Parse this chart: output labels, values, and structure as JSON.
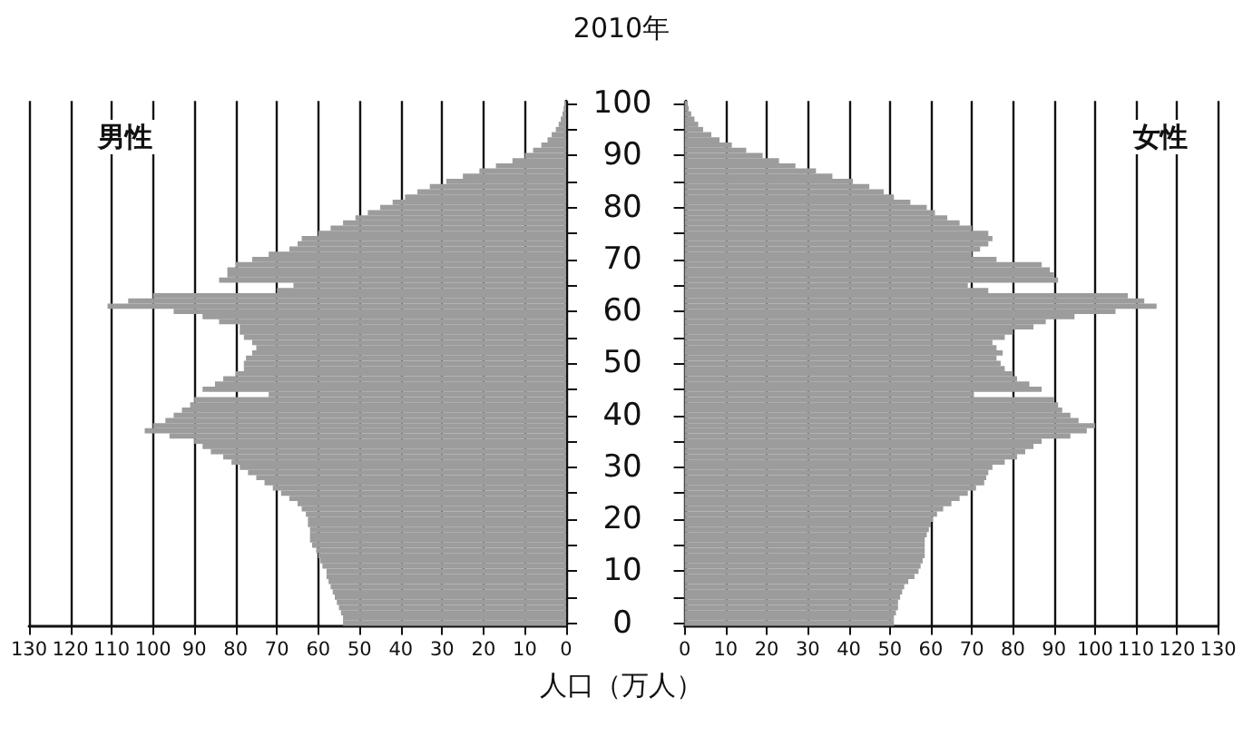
{
  "chart_data": [
    {
      "type": "bar",
      "orientation": "horizontal",
      "title": "2010年",
      "xlabel": "人口（万人）",
      "categories": [
        "100",
        null,
        null,
        null,
        null,
        null,
        null,
        null,
        null,
        null,
        "90",
        null,
        null,
        null,
        null,
        null,
        null,
        null,
        null,
        null,
        "80",
        null,
        null,
        null,
        null,
        null,
        null,
        null,
        null,
        null,
        "70",
        null,
        null,
        null,
        null,
        null,
        null,
        null,
        null,
        null,
        "60",
        null,
        null,
        null,
        null,
        null,
        null,
        null,
        null,
        null,
        "50",
        null,
        null,
        null,
        null,
        null,
        null,
        null,
        null,
        null,
        "40",
        null,
        null,
        null,
        null,
        null,
        null,
        null,
        null,
        null,
        "30",
        null,
        null,
        null,
        null,
        null,
        null,
        null,
        null,
        null,
        "20",
        null,
        null,
        null,
        null,
        null,
        null,
        null,
        null,
        null,
        "10",
        null,
        null,
        null,
        null,
        null,
        null,
        null,
        null,
        null,
        "0"
      ],
      "series": [
        {
          "name": "男性",
          "color": "#9c9c9c",
          "values": [
            0.4,
            0.6,
            0.9,
            1.3,
            1.8,
            2.5,
            3.5,
            4.5,
            6,
            8,
            10,
            13,
            17,
            21,
            25,
            29,
            33,
            36,
            39,
            42,
            45,
            48,
            51,
            54,
            57,
            60,
            64,
            65,
            67,
            72,
            76,
            80,
            82,
            82,
            84,
            66,
            70,
            100,
            106,
            111,
            95,
            88,
            84,
            79,
            79,
            78,
            76,
            75,
            76,
            77.5,
            78,
            78,
            80,
            83,
            85,
            88,
            72,
            90,
            91,
            93,
            95,
            97,
            100,
            102,
            96,
            90,
            88,
            86,
            83,
            81,
            79,
            77,
            75,
            73,
            71,
            69,
            67,
            65,
            64,
            63,
            62.5,
            62.5,
            62,
            62,
            62,
            61.5,
            60.5,
            60,
            59.5,
            59,
            58,
            58,
            57.5,
            57,
            56.5,
            56,
            55.5,
            55,
            54.5,
            54,
            54
          ]
        }
      ],
      "xlim": [
        130,
        0
      ],
      "xticks": [
        130,
        120,
        110,
        100,
        90,
        80,
        70,
        60,
        50,
        40,
        30,
        20,
        10,
        0
      ],
      "grid": "x",
      "legend": "top left"
    },
    {
      "type": "bar",
      "orientation": "horizontal",
      "categories": [
        "100",
        null,
        null,
        null,
        null,
        null,
        null,
        null,
        null,
        null,
        "90",
        null,
        null,
        null,
        null,
        null,
        null,
        null,
        null,
        null,
        "80",
        null,
        null,
        null,
        null,
        null,
        null,
        null,
        null,
        null,
        "70",
        null,
        null,
        null,
        null,
        null,
        null,
        null,
        null,
        null,
        "60",
        null,
        null,
        null,
        null,
        null,
        null,
        null,
        null,
        null,
        "50",
        null,
        null,
        null,
        null,
        null,
        null,
        null,
        null,
        null,
        "40",
        null,
        null,
        null,
        null,
        null,
        null,
        null,
        null,
        null,
        "30",
        null,
        null,
        null,
        null,
        null,
        null,
        null,
        null,
        null,
        "20",
        null,
        null,
        null,
        null,
        null,
        null,
        null,
        null,
        null,
        "10",
        null,
        null,
        null,
        null,
        null,
        null,
        null,
        null,
        null,
        "0"
      ],
      "series": [
        {
          "name": "女性",
          "color": "#9c9c9c",
          "values": [
            0.7,
            1,
            1.6,
            2.4,
            3.3,
            4.5,
            6.5,
            8.5,
            11.5,
            15,
            19,
            23,
            27,
            32,
            36,
            41,
            45,
            48.5,
            51,
            55,
            59,
            61,
            64,
            67,
            70,
            74,
            75,
            74,
            72,
            70,
            76,
            87,
            89,
            90,
            91,
            69,
            74,
            108,
            112,
            115,
            105,
            95,
            88,
            85,
            80,
            78,
            75,
            76,
            77.5,
            76,
            77,
            78,
            80,
            81,
            84,
            87,
            70.5,
            90,
            91,
            92,
            94,
            96,
            100,
            98,
            94,
            87,
            85,
            83,
            81,
            78,
            75,
            74,
            73.5,
            73,
            71,
            69,
            67,
            65,
            63,
            61.5,
            60.5,
            60,
            59.5,
            59,
            58.5,
            58.5,
            58.5,
            58.5,
            58,
            57.5,
            57,
            56,
            54.5,
            53.5,
            53,
            52.5,
            52,
            52,
            51.5,
            51,
            51
          ]
        }
      ],
      "xlim": [
        0,
        130
      ],
      "xticks": [
        0,
        10,
        20,
        30,
        40,
        50,
        60,
        70,
        80,
        90,
        100,
        110,
        120,
        130
      ],
      "grid": "x",
      "legend": "top right",
      "tick_labels": "x"
    }
  ]
}
